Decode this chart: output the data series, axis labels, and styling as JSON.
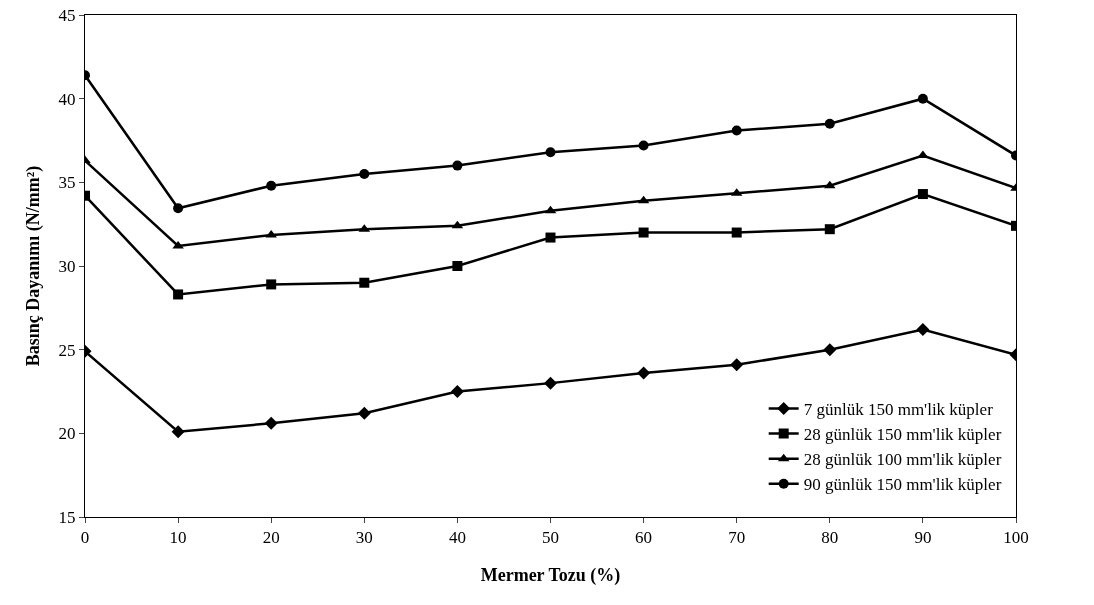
{
  "chart_data": {
    "type": "line",
    "xlabel": "Mermer Tozu (%)",
    "ylabel": "Basınç Dayanımı (N/mm²)",
    "x": [
      0,
      10,
      20,
      30,
      40,
      50,
      60,
      70,
      80,
      90,
      100
    ],
    "xlim": [
      0,
      100
    ],
    "xticks": [
      0,
      10,
      20,
      30,
      40,
      50,
      60,
      70,
      80,
      90,
      100
    ],
    "ylim": [
      15,
      45
    ],
    "yticks": [
      15,
      20,
      25,
      30,
      35,
      40,
      45
    ],
    "grid": false,
    "legend": "bottom right",
    "line_style": "solid",
    "series": [
      {
        "name": "7 günlük 150 mm'lik küpler",
        "color": "#000000",
        "marker": "diamond",
        "values": [
          24.9,
          20.1,
          20.6,
          21.2,
          22.5,
          23.0,
          23.6,
          24.1,
          25.0,
          26.2,
          24.7
        ]
      },
      {
        "name": "28 günlük 150 mm'lik küpler",
        "color": "#000000",
        "marker": "square",
        "values": [
          34.2,
          28.3,
          28.9,
          29.0,
          30.0,
          31.7,
          32.0,
          32.0,
          32.2,
          34.3,
          32.4
        ]
      },
      {
        "name": "28 günlük 100 mm'lik küpler",
        "color": "#000000",
        "marker": "triangle",
        "values": [
          36.3,
          31.2,
          31.85,
          32.2,
          32.4,
          33.3,
          33.9,
          34.35,
          34.8,
          36.6,
          34.65
        ]
      },
      {
        "name": "90 günlük 150 mm'lik küpler",
        "color": "#000000",
        "marker": "circle",
        "values": [
          41.4,
          33.45,
          34.8,
          35.5,
          36.0,
          36.8,
          37.2,
          38.1,
          38.5,
          40.0,
          36.6
        ]
      }
    ]
  }
}
